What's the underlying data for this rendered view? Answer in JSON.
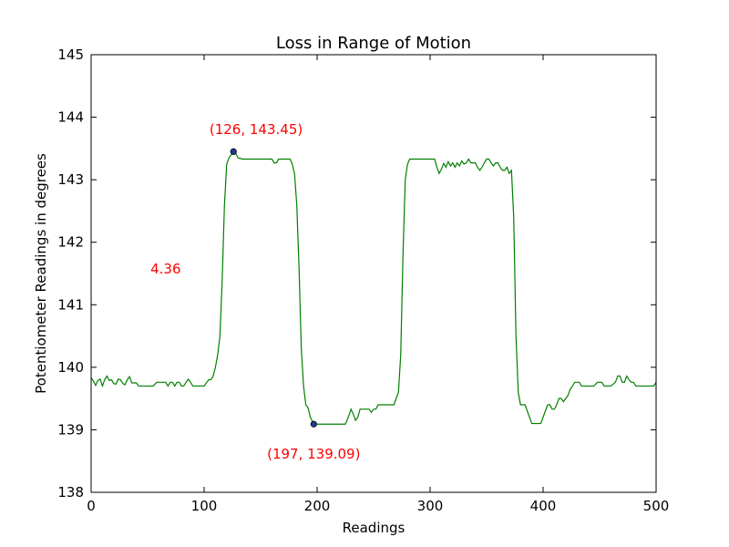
{
  "chart_data": {
    "type": "line",
    "title": "Loss in Range of Motion",
    "xlabel": "Readings",
    "ylabel": "Potentiometer Readings in degrees",
    "xlim": [
      0,
      500
    ],
    "ylim": [
      138,
      145
    ],
    "x_ticks": [
      0,
      100,
      200,
      300,
      400,
      500
    ],
    "y_ticks": [
      138,
      139,
      140,
      141,
      142,
      143,
      144,
      145
    ],
    "grid": false,
    "line_color": "#008000",
    "marker_color": "#1f3a93",
    "annotation_color": "#ff0000",
    "series": [
      {
        "points": [
          [
            0,
            139.83
          ],
          [
            2,
            139.78
          ],
          [
            4,
            139.71
          ],
          [
            6,
            139.79
          ],
          [
            8,
            139.81
          ],
          [
            10,
            139.7
          ],
          [
            12,
            139.8
          ],
          [
            14,
            139.86
          ],
          [
            16,
            139.79
          ],
          [
            18,
            139.8
          ],
          [
            20,
            139.74
          ],
          [
            22,
            139.73
          ],
          [
            24,
            139.81
          ],
          [
            26,
            139.8
          ],
          [
            28,
            139.74
          ],
          [
            30,
            139.72
          ],
          [
            32,
            139.8
          ],
          [
            34,
            139.85
          ],
          [
            36,
            139.75
          ],
          [
            38,
            139.75
          ],
          [
            40,
            139.75
          ],
          [
            42,
            139.7
          ],
          [
            46,
            139.7
          ],
          [
            50,
            139.7
          ],
          [
            55,
            139.7
          ],
          [
            58,
            139.76
          ],
          [
            62,
            139.76
          ],
          [
            66,
            139.76
          ],
          [
            68,
            139.7
          ],
          [
            70,
            139.76
          ],
          [
            72,
            139.76
          ],
          [
            74,
            139.7
          ],
          [
            76,
            139.76
          ],
          [
            78,
            139.76
          ],
          [
            80,
            139.7
          ],
          [
            82,
            139.7
          ],
          [
            84,
            139.76
          ],
          [
            86,
            139.81
          ],
          [
            88,
            139.76
          ],
          [
            90,
            139.7
          ],
          [
            92,
            139.7
          ],
          [
            94,
            139.7
          ],
          [
            96,
            139.7
          ],
          [
            100,
            139.7
          ],
          [
            104,
            139.8
          ],
          [
            106,
            139.8
          ],
          [
            108,
            139.86
          ],
          [
            110,
            140.0
          ],
          [
            112,
            140.2
          ],
          [
            114,
            140.5
          ],
          [
            116,
            141.4
          ],
          [
            118,
            142.6
          ],
          [
            120,
            143.25
          ],
          [
            122,
            143.35
          ],
          [
            124,
            143.4
          ],
          [
            126,
            143.45
          ],
          [
            128,
            143.42
          ],
          [
            130,
            143.35
          ],
          [
            134,
            143.33
          ],
          [
            140,
            143.33
          ],
          [
            150,
            143.33
          ],
          [
            160,
            143.33
          ],
          [
            162,
            143.27
          ],
          [
            164,
            143.27
          ],
          [
            166,
            143.33
          ],
          [
            168,
            143.33
          ],
          [
            170,
            143.33
          ],
          [
            174,
            143.33
          ],
          [
            176,
            143.33
          ],
          [
            178,
            143.25
          ],
          [
            180,
            143.1
          ],
          [
            182,
            142.6
          ],
          [
            184,
            141.6
          ],
          [
            186,
            140.3
          ],
          [
            188,
            139.7
          ],
          [
            190,
            139.4
          ],
          [
            192,
            139.35
          ],
          [
            194,
            139.2
          ],
          [
            197,
            139.09
          ],
          [
            200,
            139.09
          ],
          [
            205,
            139.09
          ],
          [
            210,
            139.09
          ],
          [
            215,
            139.09
          ],
          [
            220,
            139.09
          ],
          [
            225,
            139.09
          ],
          [
            228,
            139.22
          ],
          [
            230,
            139.33
          ],
          [
            232,
            139.25
          ],
          [
            234,
            139.15
          ],
          [
            236,
            139.2
          ],
          [
            238,
            139.33
          ],
          [
            240,
            139.33
          ],
          [
            242,
            139.33
          ],
          [
            244,
            139.33
          ],
          [
            246,
            139.33
          ],
          [
            248,
            139.28
          ],
          [
            250,
            139.33
          ],
          [
            252,
            139.33
          ],
          [
            254,
            139.4
          ],
          [
            258,
            139.4
          ],
          [
            264,
            139.4
          ],
          [
            268,
            139.4
          ],
          [
            270,
            139.5
          ],
          [
            272,
            139.6
          ],
          [
            274,
            140.2
          ],
          [
            276,
            141.8
          ],
          [
            278,
            143.0
          ],
          [
            280,
            143.25
          ],
          [
            282,
            143.33
          ],
          [
            286,
            143.33
          ],
          [
            290,
            143.33
          ],
          [
            300,
            143.33
          ],
          [
            304,
            143.33
          ],
          [
            306,
            143.2
          ],
          [
            308,
            143.1
          ],
          [
            310,
            143.17
          ],
          [
            312,
            143.26
          ],
          [
            314,
            143.2
          ],
          [
            316,
            143.29
          ],
          [
            318,
            143.22
          ],
          [
            320,
            143.27
          ],
          [
            322,
            143.2
          ],
          [
            324,
            143.27
          ],
          [
            326,
            143.22
          ],
          [
            328,
            143.3
          ],
          [
            330,
            143.25
          ],
          [
            332,
            143.27
          ],
          [
            334,
            143.33
          ],
          [
            336,
            143.27
          ],
          [
            338,
            143.27
          ],
          [
            340,
            143.27
          ],
          [
            342,
            143.2
          ],
          [
            344,
            143.15
          ],
          [
            346,
            143.2
          ],
          [
            348,
            143.27
          ],
          [
            350,
            143.33
          ],
          [
            352,
            143.33
          ],
          [
            354,
            143.27
          ],
          [
            356,
            143.22
          ],
          [
            358,
            143.27
          ],
          [
            360,
            143.27
          ],
          [
            362,
            143.2
          ],
          [
            364,
            143.15
          ],
          [
            366,
            143.15
          ],
          [
            368,
            143.2
          ],
          [
            370,
            143.1
          ],
          [
            372,
            143.15
          ],
          [
            374,
            142.4
          ],
          [
            376,
            140.5
          ],
          [
            378,
            139.6
          ],
          [
            380,
            139.4
          ],
          [
            384,
            139.4
          ],
          [
            386,
            139.3
          ],
          [
            388,
            139.2
          ],
          [
            390,
            139.1
          ],
          [
            394,
            139.1
          ],
          [
            398,
            139.1
          ],
          [
            400,
            139.2
          ],
          [
            402,
            139.3
          ],
          [
            404,
            139.4
          ],
          [
            406,
            139.4
          ],
          [
            408,
            139.33
          ],
          [
            410,
            139.33
          ],
          [
            412,
            139.4
          ],
          [
            414,
            139.5
          ],
          [
            416,
            139.5
          ],
          [
            418,
            139.45
          ],
          [
            420,
            139.5
          ],
          [
            422,
            139.55
          ],
          [
            424,
            139.65
          ],
          [
            426,
            139.7
          ],
          [
            428,
            139.76
          ],
          [
            430,
            139.76
          ],
          [
            432,
            139.76
          ],
          [
            434,
            139.7
          ],
          [
            440,
            139.7
          ],
          [
            445,
            139.7
          ],
          [
            448,
            139.76
          ],
          [
            452,
            139.76
          ],
          [
            454,
            139.7
          ],
          [
            460,
            139.7
          ],
          [
            464,
            139.76
          ],
          [
            466,
            139.86
          ],
          [
            468,
            139.86
          ],
          [
            470,
            139.76
          ],
          [
            472,
            139.76
          ],
          [
            474,
            139.86
          ],
          [
            476,
            139.8
          ],
          [
            478,
            139.76
          ],
          [
            480,
            139.76
          ],
          [
            482,
            139.7
          ],
          [
            486,
            139.7
          ],
          [
            490,
            139.7
          ],
          [
            494,
            139.7
          ],
          [
            498,
            139.7
          ],
          [
            500,
            139.76
          ]
        ]
      }
    ],
    "markers": [
      {
        "x": 126,
        "y": 143.45
      },
      {
        "x": 197,
        "y": 139.09
      }
    ],
    "annotations": [
      {
        "text": "(126, 143.45)",
        "x": 146,
        "y": 143.73
      },
      {
        "text": "(197, 139.09)",
        "x": 197,
        "y": 138.54
      },
      {
        "text": "4.36",
        "x": 66,
        "y": 141.5
      }
    ]
  }
}
